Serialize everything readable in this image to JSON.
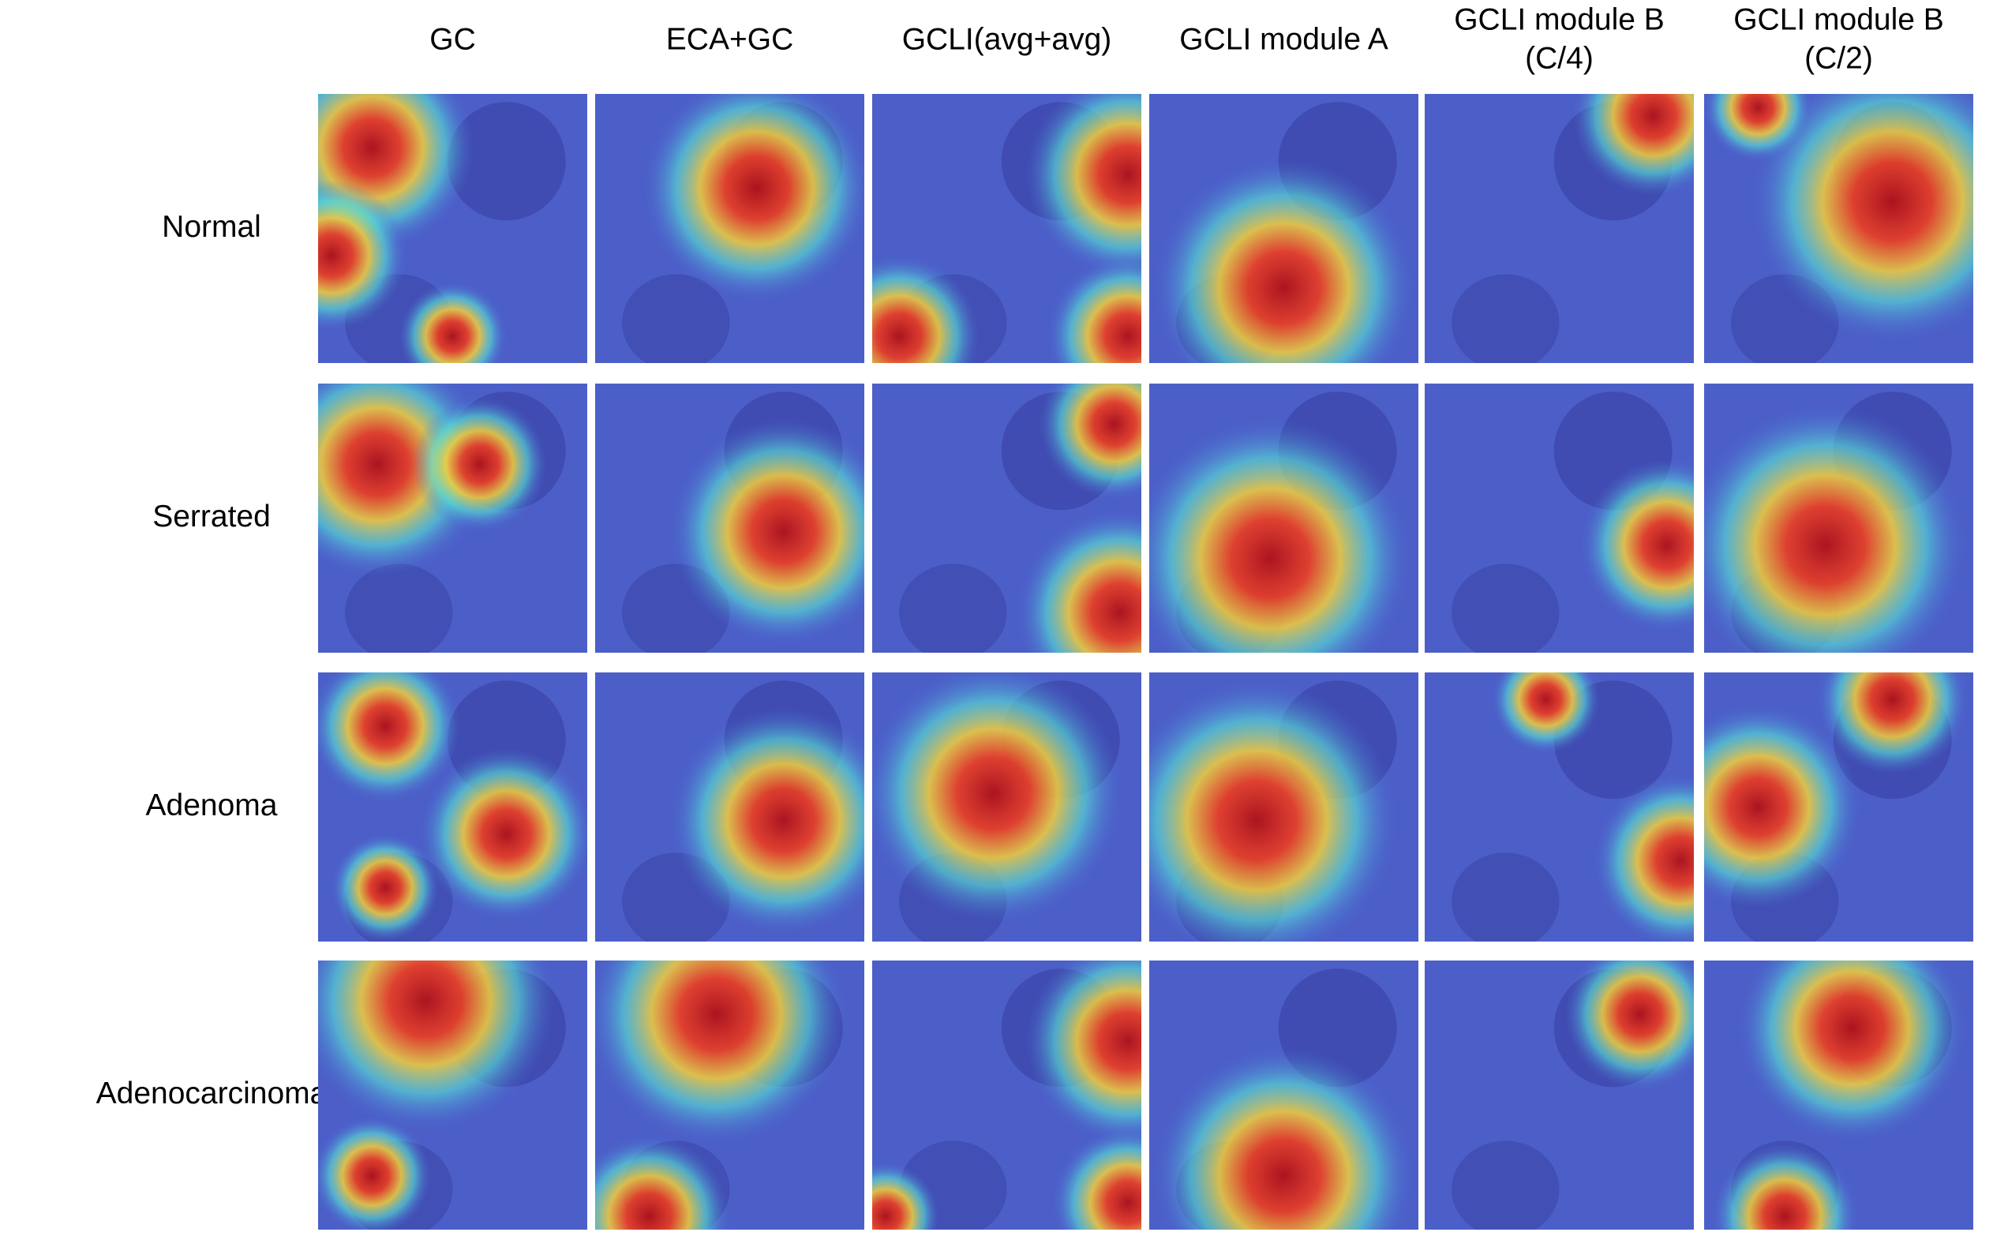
{
  "columns": [
    [
      "GC"
    ],
    [
      "ECA+GC"
    ],
    [
      "GCLI(avg+avg)"
    ],
    [
      "GCLI module A"
    ],
    [
      "GCLI module B",
      "(C/4)"
    ],
    [
      "GCLI module B",
      "(C/2)"
    ]
  ],
  "rows": [
    "Normal",
    "Serrated",
    "Adenoma",
    "Adenocarcinoma"
  ]
}
